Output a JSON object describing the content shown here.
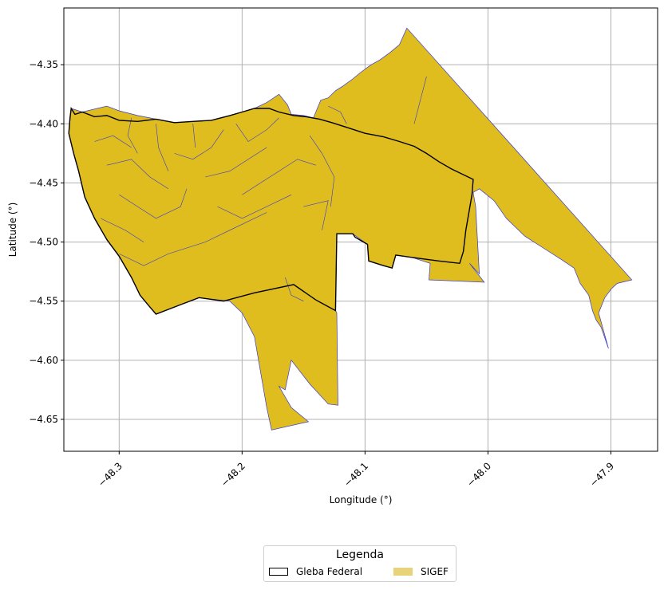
{
  "chart_data": {
    "type": "map",
    "xlabel": "Longitude (°)",
    "ylabel": "Latitude (°)",
    "xlim": [
      -48.345,
      -47.862
    ],
    "ylim": [
      -4.677,
      -4.302
    ],
    "xticks": [
      -48.3,
      -48.2,
      -48.1,
      -48.0,
      -47.9
    ],
    "xtick_labels": [
      "−48.3",
      "−48.2",
      "−48.1",
      "−48.0",
      "−47.9"
    ],
    "yticks": [
      -4.35,
      -4.4,
      -4.45,
      -4.5,
      -4.55,
      -4.6,
      -4.65
    ],
    "ytick_labels": [
      "−4.35",
      "−4.40",
      "−4.45",
      "−4.50",
      "−4.55",
      "−4.60",
      "−4.65"
    ],
    "grid": true,
    "legend": {
      "title": "Legenda",
      "placement": "bottom-center",
      "entries": [
        {
          "name": "Gleba Federal",
          "fill": "#ffffff",
          "edge": "#000000"
        },
        {
          "name": "SIGEF",
          "fill": "#e8d27a",
          "edge": "#e8d27a"
        }
      ]
    },
    "colors": {
      "sigef_fill": "#dfbd1f",
      "sigef_edge": "#3a3ad0",
      "gleba_edge": "#000000",
      "grid": "#b0b0b0"
    },
    "gleba_federal": [
      [
        -48.339,
        -4.387
      ],
      [
        -48.336,
        -4.392
      ],
      [
        -48.33,
        -4.39
      ],
      [
        -48.32,
        -4.394
      ],
      [
        -48.31,
        -4.393
      ],
      [
        -48.3,
        -4.397
      ],
      [
        -48.285,
        -4.398
      ],
      [
        -48.27,
        -4.396
      ],
      [
        -48.255,
        -4.399
      ],
      [
        -48.24,
        -4.398
      ],
      [
        -48.225,
        -4.397
      ],
      [
        -48.21,
        -4.393
      ],
      [
        -48.2,
        -4.39
      ],
      [
        -48.19,
        -4.387
      ],
      [
        -48.178,
        -4.387
      ],
      [
        -48.17,
        -4.39
      ],
      [
        -48.158,
        -4.393
      ],
      [
        -48.148,
        -4.394
      ],
      [
        -48.137,
        -4.396
      ],
      [
        -48.127,
        -4.399
      ],
      [
        -48.115,
        -4.403
      ],
      [
        -48.1,
        -4.408
      ],
      [
        -48.085,
        -4.411
      ],
      [
        -48.072,
        -4.415
      ],
      [
        -48.06,
        -4.419
      ],
      [
        -48.05,
        -4.425
      ],
      [
        -48.04,
        -4.432
      ],
      [
        -48.03,
        -4.438
      ],
      [
        -48.012,
        -4.447
      ],
      [
        -48.013,
        -4.46
      ],
      [
        -48.018,
        -4.49
      ],
      [
        -48.02,
        -4.508
      ],
      [
        -48.023,
        -4.518
      ],
      [
        -48.04,
        -4.516
      ],
      [
        -48.062,
        -4.513
      ],
      [
        -48.075,
        -4.511
      ],
      [
        -48.078,
        -4.522
      ],
      [
        -48.085,
        -4.52
      ],
      [
        -48.097,
        -4.516
      ],
      [
        -48.098,
        -4.502
      ],
      [
        -48.108,
        -4.496
      ],
      [
        -48.11,
        -4.493
      ],
      [
        -48.123,
        -4.493
      ],
      [
        -48.124,
        -4.558
      ],
      [
        -48.14,
        -4.549
      ],
      [
        -48.158,
        -4.536
      ],
      [
        -48.19,
        -4.543
      ],
      [
        -48.215,
        -4.55
      ],
      [
        -48.235,
        -4.547
      ],
      [
        -48.25,
        -4.553
      ],
      [
        -48.27,
        -4.561
      ],
      [
        -48.275,
        -4.555
      ],
      [
        -48.283,
        -4.545
      ],
      [
        -48.29,
        -4.53
      ],
      [
        -48.3,
        -4.512
      ],
      [
        -48.31,
        -4.498
      ],
      [
        -48.32,
        -4.48
      ],
      [
        -48.328,
        -4.462
      ],
      [
        -48.333,
        -4.44
      ],
      [
        -48.337,
        -4.425
      ],
      [
        -48.341,
        -4.408
      ],
      [
        -48.34,
        -4.395
      ]
    ],
    "sigef_outline": [
      [
        -48.339,
        -4.387
      ],
      [
        -48.33,
        -4.39
      ],
      [
        -48.31,
        -4.385
      ],
      [
        -48.3,
        -4.389
      ],
      [
        -48.285,
        -4.393
      ],
      [
        -48.27,
        -4.396
      ],
      [
        -48.255,
        -4.399
      ],
      [
        -48.24,
        -4.398
      ],
      [
        -48.225,
        -4.397
      ],
      [
        -48.21,
        -4.393
      ],
      [
        -48.2,
        -4.39
      ],
      [
        -48.19,
        -4.387
      ],
      [
        -48.18,
        -4.382
      ],
      [
        -48.17,
        -4.375
      ],
      [
        -48.163,
        -4.384
      ],
      [
        -48.16,
        -4.392
      ],
      [
        -48.15,
        -4.393
      ],
      [
        -48.142,
        -4.395
      ],
      [
        -48.136,
        -4.38
      ],
      [
        -48.13,
        -4.378
      ],
      [
        -48.124,
        -4.372
      ],
      [
        -48.118,
        -4.368
      ],
      [
        -48.11,
        -4.362
      ],
      [
        -48.103,
        -4.356
      ],
      [
        -48.095,
        -4.35
      ],
      [
        -48.088,
        -4.346
      ],
      [
        -48.08,
        -4.34
      ],
      [
        -48.072,
        -4.333
      ],
      [
        -48.066,
        -4.319
      ],
      [
        -47.883,
        -4.532
      ],
      [
        -47.895,
        -4.535
      ],
      [
        -47.9,
        -4.54
      ],
      [
        -47.905,
        -4.547
      ],
      [
        -47.91,
        -4.56
      ],
      [
        -47.902,
        -4.59
      ],
      [
        -47.908,
        -4.572
      ],
      [
        -47.912,
        -4.566
      ],
      [
        -47.915,
        -4.558
      ],
      [
        -47.918,
        -4.545
      ],
      [
        -47.925,
        -4.535
      ],
      [
        -47.93,
        -4.522
      ],
      [
        -47.94,
        -4.515
      ],
      [
        -47.955,
        -4.505
      ],
      [
        -47.97,
        -4.495
      ],
      [
        -47.985,
        -4.48
      ],
      [
        -47.995,
        -4.465
      ],
      [
        -48.007,
        -4.455
      ],
      [
        -48.012,
        -4.458
      ],
      [
        -48.01,
        -4.47
      ],
      [
        -48.007,
        -4.527
      ],
      [
        -48.015,
        -4.518
      ],
      [
        -48.003,
        -4.534
      ],
      [
        -48.048,
        -4.532
      ],
      [
        -48.047,
        -4.518
      ],
      [
        -48.062,
        -4.513
      ],
      [
        -48.075,
        -4.511
      ],
      [
        -48.078,
        -4.522
      ],
      [
        -48.097,
        -4.516
      ],
      [
        -48.098,
        -4.502
      ],
      [
        -48.11,
        -4.493
      ],
      [
        -48.123,
        -4.493
      ],
      [
        -48.124,
        -4.558
      ],
      [
        -48.123,
        -4.56
      ],
      [
        -48.122,
        -4.638
      ],
      [
        -48.13,
        -4.637
      ],
      [
        -48.145,
        -4.62
      ],
      [
        -48.16,
        -4.6
      ],
      [
        -48.165,
        -4.625
      ],
      [
        -48.17,
        -4.622
      ],
      [
        -48.16,
        -4.64
      ],
      [
        -48.146,
        -4.652
      ],
      [
        -48.176,
        -4.659
      ],
      [
        -48.18,
        -4.64
      ],
      [
        -48.19,
        -4.58
      ],
      [
        -48.2,
        -4.56
      ],
      [
        -48.21,
        -4.55
      ],
      [
        -48.235,
        -4.547
      ],
      [
        -48.25,
        -4.553
      ],
      [
        -48.27,
        -4.561
      ],
      [
        -48.283,
        -4.545
      ],
      [
        -48.29,
        -4.53
      ],
      [
        -48.3,
        -4.512
      ],
      [
        -48.31,
        -4.498
      ],
      [
        -48.32,
        -4.48
      ],
      [
        -48.328,
        -4.462
      ],
      [
        -48.333,
        -4.44
      ],
      [
        -48.337,
        -4.425
      ],
      [
        -48.341,
        -4.408
      ]
    ],
    "parcel_lines": [
      [
        [
          -48.32,
          -4.415
        ],
        [
          -48.305,
          -4.41
        ],
        [
          -48.29,
          -4.42
        ]
      ],
      [
        [
          -48.31,
          -4.435
        ],
        [
          -48.29,
          -4.43
        ],
        [
          -48.275,
          -4.445
        ],
        [
          -48.26,
          -4.455
        ]
      ],
      [
        [
          -48.3,
          -4.46
        ],
        [
          -48.285,
          -4.47
        ],
        [
          -48.27,
          -4.48
        ],
        [
          -48.25,
          -4.47
        ],
        [
          -48.245,
          -4.455
        ]
      ],
      [
        [
          -48.315,
          -4.48
        ],
        [
          -48.295,
          -4.49
        ],
        [
          -48.28,
          -4.5
        ]
      ],
      [
        [
          -48.3,
          -4.51
        ],
        [
          -48.28,
          -4.52
        ],
        [
          -48.26,
          -4.51
        ],
        [
          -48.23,
          -4.5
        ],
        [
          -48.21,
          -4.49
        ],
        [
          -48.18,
          -4.475
        ]
      ],
      [
        [
          -48.255,
          -4.425
        ],
        [
          -48.24,
          -4.43
        ],
        [
          -48.225,
          -4.42
        ],
        [
          -48.215,
          -4.405
        ]
      ],
      [
        [
          -48.23,
          -4.445
        ],
        [
          -48.21,
          -4.44
        ],
        [
          -48.195,
          -4.43
        ],
        [
          -48.18,
          -4.42
        ]
      ],
      [
        [
          -48.205,
          -4.4
        ],
        [
          -48.195,
          -4.415
        ],
        [
          -48.18,
          -4.405
        ],
        [
          -48.17,
          -4.395
        ]
      ],
      [
        [
          -48.2,
          -4.46
        ],
        [
          -48.185,
          -4.45
        ],
        [
          -48.17,
          -4.44
        ],
        [
          -48.155,
          -4.43
        ],
        [
          -48.14,
          -4.435
        ]
      ],
      [
        [
          -48.22,
          -4.47
        ],
        [
          -48.2,
          -4.48
        ],
        [
          -48.18,
          -4.47
        ],
        [
          -48.16,
          -4.46
        ]
      ],
      [
        [
          -48.145,
          -4.41
        ],
        [
          -48.135,
          -4.425
        ],
        [
          -48.125,
          -4.445
        ],
        [
          -48.128,
          -4.47
        ]
      ],
      [
        [
          -48.15,
          -4.47
        ],
        [
          -48.13,
          -4.465
        ],
        [
          -48.135,
          -4.49
        ]
      ],
      [
        [
          -48.29,
          -4.395
        ],
        [
          -48.293,
          -4.41
        ],
        [
          -48.285,
          -4.425
        ]
      ],
      [
        [
          -48.27,
          -4.4
        ],
        [
          -48.268,
          -4.42
        ],
        [
          -48.26,
          -4.44
        ]
      ],
      [
        [
          -48.24,
          -4.4
        ],
        [
          -48.238,
          -4.42
        ]
      ],
      [
        [
          -48.06,
          -4.4
        ],
        [
          -48.055,
          -4.38
        ],
        [
          -48.05,
          -4.36
        ]
      ],
      [
        [
          -48.13,
          -4.385
        ],
        [
          -48.12,
          -4.39
        ],
        [
          -48.115,
          -4.4
        ]
      ],
      [
        [
          -48.165,
          -4.53
        ],
        [
          -48.16,
          -4.545
        ],
        [
          -48.15,
          -4.55
        ]
      ]
    ]
  }
}
